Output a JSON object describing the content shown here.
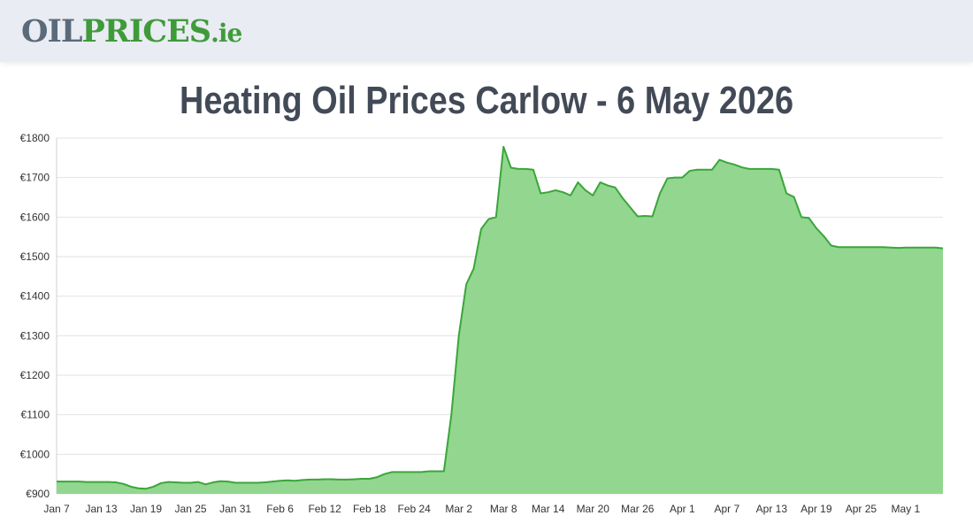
{
  "header": {
    "logo_part1": "OIL",
    "logo_part2": "PRICES",
    "logo_part3": ".ie"
  },
  "colors": {
    "brand_green": "#3f9b3a",
    "area_fill": "#92d68f",
    "line": "#3aa63a",
    "header_bg": "#e9ecf3"
  },
  "chart_data": {
    "type": "area",
    "title": "Heating Oil Prices Carlow - 6 May 2026",
    "xlabel": "",
    "ylabel": "",
    "grid": true,
    "legend": "none",
    "ylim": [
      900,
      1800
    ],
    "y_ticks": [
      "€900",
      "€1000",
      "€1100",
      "€1200",
      "€1300",
      "€1400",
      "€1500",
      "€1600",
      "€1700",
      "€1800"
    ],
    "x_ticks": [
      "Jan 7",
      "Jan 13",
      "Jan 19",
      "Jan 25",
      "Jan 31",
      "Feb 6",
      "Feb 12",
      "Feb 18",
      "Feb 24",
      "Mar 2",
      "Mar 8",
      "Mar 14",
      "Mar 20",
      "Mar 26",
      "Apr 1",
      "Apr 7",
      "Apr 13",
      "Apr 19",
      "Apr 25",
      "May 1"
    ],
    "series": [
      {
        "name": "",
        "x": [
          "Jan 7",
          "Jan 8",
          "Jan 9",
          "Jan 10",
          "Jan 11",
          "Jan 12",
          "Jan 13",
          "Jan 14",
          "Jan 15",
          "Jan 16",
          "Jan 17",
          "Jan 18",
          "Jan 19",
          "Jan 20",
          "Jan 21",
          "Jan 22",
          "Jan 23",
          "Jan 24",
          "Jan 25",
          "Jan 26",
          "Jan 27",
          "Jan 28",
          "Jan 29",
          "Jan 30",
          "Jan 31",
          "Feb 1",
          "Feb 2",
          "Feb 3",
          "Feb 4",
          "Feb 5",
          "Feb 6",
          "Feb 7",
          "Feb 8",
          "Feb 9",
          "Feb 10",
          "Feb 11",
          "Feb 12",
          "Feb 13",
          "Feb 14",
          "Feb 15",
          "Feb 16",
          "Feb 17",
          "Feb 18",
          "Feb 19",
          "Feb 20",
          "Feb 21",
          "Feb 22",
          "Feb 23",
          "Feb 24",
          "Feb 25",
          "Feb 26",
          "Feb 27",
          "Feb 28",
          "Mar 1",
          "Mar 2",
          "Mar 3",
          "Mar 4",
          "Mar 5",
          "Mar 6",
          "Mar 7",
          "Mar 8",
          "Mar 9",
          "Mar 10",
          "Mar 11",
          "Mar 12",
          "Mar 13",
          "Mar 14",
          "Mar 15",
          "Mar 16",
          "Mar 17",
          "Mar 18",
          "Mar 19",
          "Mar 20",
          "Mar 21",
          "Mar 22",
          "Mar 23",
          "Mar 24",
          "Mar 25",
          "Mar 26",
          "Mar 27",
          "Mar 28",
          "Mar 29",
          "Mar 30",
          "Mar 31",
          "Apr 1",
          "Apr 2",
          "Apr 3",
          "Apr 4",
          "Apr 5",
          "Apr 6",
          "Apr 7",
          "Apr 8",
          "Apr 9",
          "Apr 10",
          "Apr 11",
          "Apr 12",
          "Apr 13",
          "Apr 14",
          "Apr 15",
          "Apr 16",
          "Apr 17",
          "Apr 18",
          "Apr 19",
          "Apr 20",
          "Apr 21",
          "Apr 22",
          "Apr 23",
          "Apr 24",
          "Apr 25",
          "Apr 26",
          "Apr 27",
          "Apr 28",
          "Apr 29",
          "Apr 30",
          "May 1",
          "May 2",
          "May 3",
          "May 4",
          "May 5",
          "May 6"
        ],
        "values": [
          931,
          931,
          931,
          931,
          930,
          930,
          930,
          930,
          929,
          925,
          918,
          914,
          913,
          918,
          927,
          930,
          929,
          928,
          928,
          930,
          924,
          929,
          932,
          931,
          928,
          928,
          928,
          928,
          929,
          931,
          933,
          934,
          933,
          935,
          936,
          936,
          937,
          937,
          936,
          936,
          937,
          938,
          938,
          942,
          950,
          955,
          955,
          955,
          955,
          955,
          957,
          957,
          957,
          1100,
          1300,
          1430,
          1470,
          1570,
          1595,
          1600,
          1778,
          1725,
          1722,
          1722,
          1720,
          1660,
          1663,
          1668,
          1663,
          1655,
          1688,
          1668,
          1655,
          1688,
          1680,
          1675,
          1648,
          1625,
          1602,
          1603,
          1602,
          1660,
          1698,
          1700,
          1700,
          1717,
          1720,
          1720,
          1720,
          1745,
          1738,
          1733,
          1726,
          1722,
          1722,
          1722,
          1722,
          1720,
          1660,
          1651,
          1600,
          1598,
          1572,
          1552,
          1528,
          1524,
          1524,
          1524,
          1524,
          1524,
          1524,
          1524,
          1523,
          1522,
          1523,
          1523,
          1523,
          1523,
          1523,
          1521
        ]
      }
    ]
  }
}
